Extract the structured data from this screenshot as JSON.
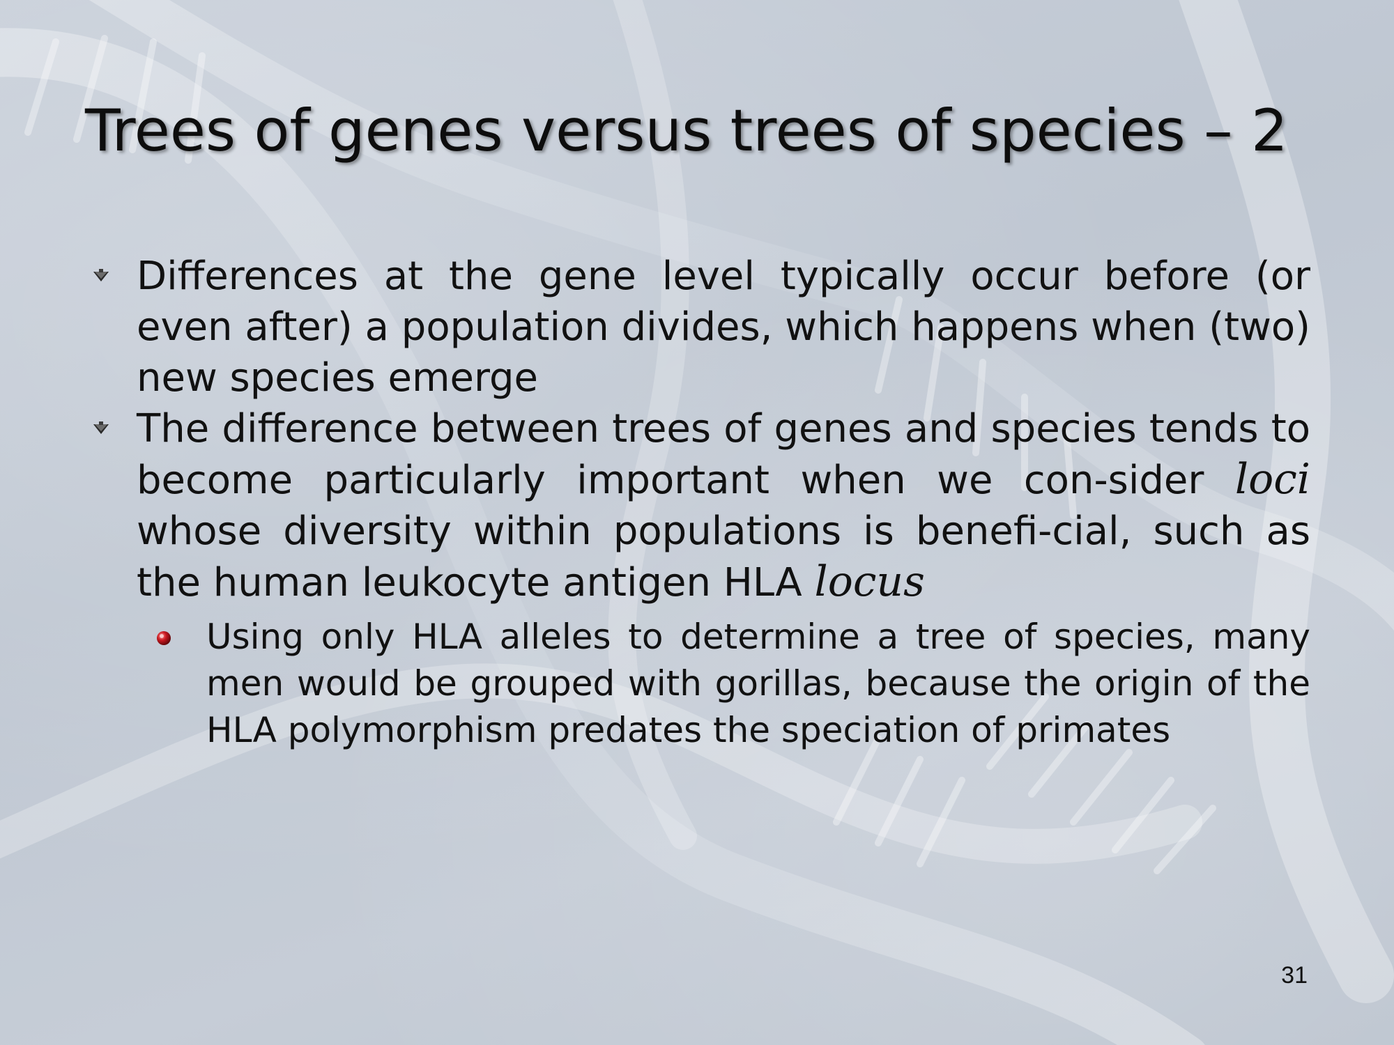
{
  "slide": {
    "title": "Trees of genes versus trees of species – 2",
    "bullets": [
      {
        "text": "Differences at the gene level typically occur before (or even after) a population divides, which happens when (two) new species emerge"
      },
      {
        "part1": "The difference between trees of genes and species tends to become particularly important when we con-sider ",
        "italic1": "loci",
        "part2": " whose diversity within populations is benefi-cial, such as the human leukocyte antigen HLA ",
        "italic2": "locus"
      }
    ],
    "sub_bullets": [
      {
        "text": "Using only HLA alleles to determine a tree of species, many men would be grouped with gorillas, because the origin of the HLA polymorphism predates the speciation of primates"
      }
    ],
    "page_number": "31"
  },
  "colors": {
    "background": "#c8cfd9",
    "text": "#111111",
    "sub_bullet": "#b3121b"
  },
  "icons": {
    "level1_bullet": "arrow-bullet-icon",
    "level2_bullet": "red-sphere-bullet-icon",
    "background": "dna-helix-watermark"
  }
}
